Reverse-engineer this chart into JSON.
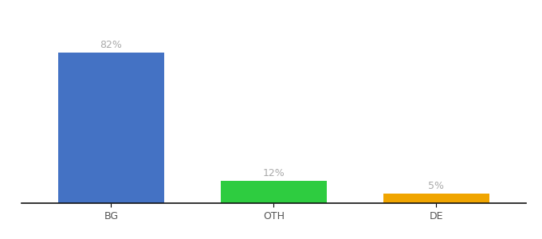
{
  "categories": [
    "BG",
    "OTH",
    "DE"
  ],
  "values": [
    82,
    12,
    5
  ],
  "labels": [
    "82%",
    "12%",
    "5%"
  ],
  "bar_colors": [
    "#4472c4",
    "#2ecc40",
    "#f0a500"
  ],
  "background_color": "#ffffff",
  "ylim": [
    0,
    95
  ],
  "bar_width": 0.65,
  "label_fontsize": 9,
  "tick_fontsize": 9,
  "label_color": "#aaaaaa"
}
